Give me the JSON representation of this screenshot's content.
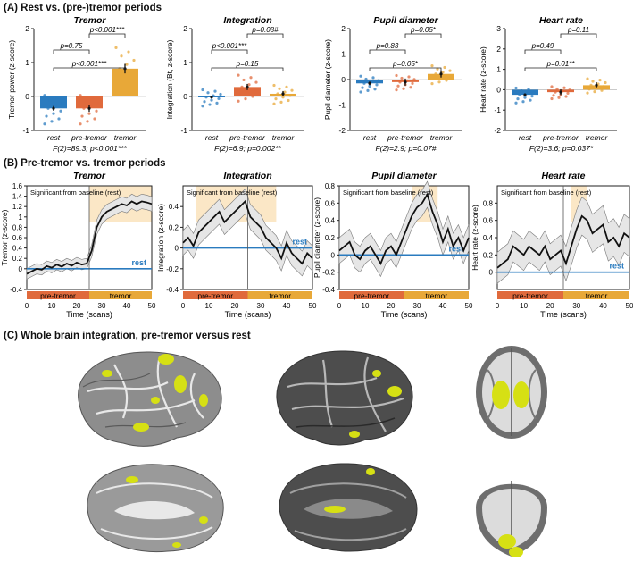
{
  "sections": {
    "a": "(A) Rest vs. (pre-)tremor periods",
    "b": "(B) Pre-tremor vs. tremor periods",
    "c": "(C) Whole brain integration, pre-tremor versus rest"
  },
  "colors": {
    "rest": "#2a7bbf",
    "pretremor": "#e06a3c",
    "tremor": "#e8a838",
    "sig_shade": "#fbe7c6",
    "activation": "#d6e014"
  },
  "chart_data": [
    {
      "type": "bar",
      "title": "Tremor",
      "ylabel": "Tremor power (z-score)",
      "categories": [
        "rest",
        "pre-tremor",
        "tremor"
      ],
      "values": [
        -0.35,
        -0.35,
        0.82
      ],
      "errors": [
        0.07,
        0.1,
        0.14
      ],
      "ylim": [
        -1,
        2
      ],
      "yticks": [
        "-1",
        "0",
        "1",
        "2"
      ],
      "comparisons": [
        {
          "label": "p=0.75",
          "from": 0,
          "to": 1
        },
        {
          "label": "p<0.001***",
          "from": 1,
          "to": 2
        },
        {
          "label": "p<0.001***",
          "from": 0,
          "to": 2
        }
      ],
      "footer": "F(2)=89.3; p<0.001***"
    },
    {
      "type": "bar",
      "title": "Integration",
      "ylabel": "Integration (Bt, z-score)",
      "categories": [
        "rest",
        "pre-tremor",
        "tremor"
      ],
      "values": [
        -0.02,
        0.28,
        0.08
      ],
      "errors": [
        0.04,
        0.09,
        0.08
      ],
      "ylim": [
        -1,
        2
      ],
      "yticks": [
        "-1",
        "0",
        "1",
        "2"
      ],
      "comparisons": [
        {
          "label": "p<0.001***",
          "from": 0,
          "to": 1
        },
        {
          "label": "p=0.08#",
          "from": 1,
          "to": 2
        },
        {
          "label": "p=0.15",
          "from": 0,
          "to": 2
        }
      ],
      "footer": "F(2)=6.9; p=0.002**"
    },
    {
      "type": "bar",
      "title": "Pupil diameter",
      "ylabel": "Pupil diameter (z-score)",
      "categories": [
        "rest",
        "pre-tremor",
        "tremor"
      ],
      "values": [
        -0.15,
        -0.1,
        0.22
      ],
      "errors": [
        0.07,
        0.14,
        0.14
      ],
      "ylim": [
        -2,
        2
      ],
      "yticks": [
        "-2",
        "-1",
        "0",
        "1",
        "2"
      ],
      "comparisons": [
        {
          "label": "p=0.83",
          "from": 0,
          "to": 1
        },
        {
          "label": "p=0.05*",
          "from": 1,
          "to": 2
        },
        {
          "label": "p=0.05*",
          "from": 0,
          "to": 2
        }
      ],
      "footer": "F(2)=2.9; p=0.07#"
    },
    {
      "type": "bar",
      "title": "Heart rate",
      "ylabel": "Heart rate (z-score)",
      "categories": [
        "rest",
        "pre-tremor",
        "tremor"
      ],
      "values": [
        -0.25,
        -0.12,
        0.22
      ],
      "errors": [
        0.06,
        0.14,
        0.15
      ],
      "ylim": [
        -2,
        3
      ],
      "yticks": [
        "-2",
        "-1",
        "0",
        "1",
        "2",
        "3"
      ],
      "comparisons": [
        {
          "label": "p=0.49",
          "from": 0,
          "to": 1
        },
        {
          "label": "p=0.11",
          "from": 1,
          "to": 2
        },
        {
          "label": "p=0.01**",
          "from": 0,
          "to": 2
        }
      ],
      "footer": "F(2)=3.6; p=0.037*"
    },
    {
      "type": "line",
      "title": "Tremor",
      "xlabel": "Time (scans)",
      "ylabel": "Tremor (z-score)",
      "xlim": [
        0,
        50
      ],
      "ylim": [
        -0.4,
        1.6
      ],
      "yticks": [
        "-0.4",
        "0",
        "0.2",
        "0.4",
        "0.6",
        "0.8",
        "1",
        "1.2",
        "1.4",
        "1.6"
      ],
      "xticks": [
        "0",
        "10",
        "20",
        "30",
        "40",
        "50"
      ],
      "onset": 25,
      "sig_label": "Significant from baseline (rest)",
      "sig_ranges": [
        [
          25,
          50
        ]
      ],
      "rest_level": 0,
      "rest_label": "rest",
      "segment_labels": [
        "pre-tremor",
        "tremor"
      ],
      "x": [
        0,
        2,
        4,
        6,
        8,
        10,
        12,
        14,
        16,
        18,
        20,
        22,
        24,
        26,
        28,
        30,
        32,
        34,
        36,
        38,
        40,
        42,
        44,
        46,
        48,
        50
      ],
      "mean": [
        -0.1,
        -0.05,
        0,
        -0.02,
        0.05,
        0.02,
        0.08,
        0.04,
        0.1,
        0.06,
        0.12,
        0.08,
        0.1,
        0.35,
        0.8,
        1.0,
        1.1,
        1.15,
        1.2,
        1.25,
        1.22,
        1.3,
        1.25,
        1.3,
        1.28,
        1.25
      ],
      "sem": [
        0.1,
        0.1,
        0.1,
        0.1,
        0.1,
        0.1,
        0.1,
        0.1,
        0.1,
        0.1,
        0.1,
        0.1,
        0.1,
        0.12,
        0.14,
        0.14,
        0.14,
        0.14,
        0.14,
        0.14,
        0.14,
        0.14,
        0.14,
        0.14,
        0.14,
        0.14
      ]
    },
    {
      "type": "line",
      "title": "Integration",
      "xlabel": "Time (scans)",
      "ylabel": "Integration (z-score)",
      "xlim": [
        0,
        50
      ],
      "ylim": [
        -0.4,
        0.6
      ],
      "yticks": [
        "-0.4",
        "-0.2",
        "0",
        "0.2",
        "0.4"
      ],
      "xticks": [
        "0",
        "10",
        "20",
        "30",
        "40",
        "50"
      ],
      "onset": 25,
      "sig_label": "Significant from baseline (rest)",
      "sig_ranges": [
        [
          5,
          36
        ]
      ],
      "rest_level": 0,
      "rest_label": "rest",
      "segment_labels": [
        "pre-tremor",
        "tremor"
      ],
      "x": [
        0,
        2,
        4,
        6,
        8,
        10,
        12,
        14,
        16,
        18,
        20,
        22,
        24,
        26,
        28,
        30,
        32,
        34,
        36,
        38,
        40,
        42,
        44,
        46,
        48,
        50
      ],
      "mean": [
        0.05,
        0.1,
        0.02,
        0.15,
        0.2,
        0.25,
        0.3,
        0.35,
        0.25,
        0.3,
        0.35,
        0.4,
        0.45,
        0.3,
        0.25,
        0.2,
        0.1,
        0.05,
        0.0,
        -0.1,
        0.05,
        -0.05,
        -0.1,
        -0.15,
        -0.05,
        -0.1
      ],
      "sem": [
        0.12,
        0.12,
        0.12,
        0.12,
        0.12,
        0.12,
        0.12,
        0.12,
        0.12,
        0.12,
        0.12,
        0.12,
        0.12,
        0.12,
        0.12,
        0.12,
        0.12,
        0.12,
        0.12,
        0.12,
        0.12,
        0.12,
        0.12,
        0.12,
        0.12,
        0.12
      ]
    },
    {
      "type": "line",
      "title": "Pupil diameter",
      "xlabel": "Time (scans)",
      "ylabel": "Pupil diameter (z-score)",
      "xlim": [
        0,
        50
      ],
      "ylim": [
        -0.4,
        0.8
      ],
      "yticks": [
        "-0.4",
        "-0.2",
        "0",
        "0.2",
        "0.4",
        "0.6",
        "0.8"
      ],
      "xticks": [
        "0",
        "10",
        "20",
        "30",
        "40",
        "50"
      ],
      "onset": 25,
      "sig_label": "Significant from baseline (rest)",
      "sig_ranges": [
        [
          28,
          38
        ]
      ],
      "rest_level": 0,
      "rest_label": "rest",
      "segment_labels": [
        "pre-tremor",
        "tremor"
      ],
      "x": [
        0,
        2,
        4,
        6,
        8,
        10,
        12,
        14,
        16,
        18,
        20,
        22,
        24,
        26,
        28,
        30,
        32,
        34,
        36,
        38,
        40,
        42,
        44,
        46,
        48,
        50
      ],
      "mean": [
        0.05,
        0.1,
        0.15,
        0.0,
        -0.05,
        0.05,
        0.1,
        0.0,
        -0.1,
        0.05,
        0.1,
        0.0,
        0.15,
        0.3,
        0.45,
        0.55,
        0.6,
        0.7,
        0.5,
        0.35,
        0.15,
        0.3,
        0.1,
        0.2,
        0.05,
        0.2
      ],
      "sem": [
        0.15,
        0.15,
        0.15,
        0.15,
        0.15,
        0.15,
        0.15,
        0.15,
        0.15,
        0.15,
        0.15,
        0.15,
        0.15,
        0.15,
        0.15,
        0.15,
        0.15,
        0.15,
        0.15,
        0.15,
        0.15,
        0.15,
        0.15,
        0.15,
        0.15,
        0.15
      ]
    },
    {
      "type": "line",
      "title": "Heart rate",
      "xlabel": "Time (scans)",
      "ylabel": "Heart rate (z-score)",
      "xlim": [
        0,
        50
      ],
      "ylim": [
        -0.2,
        1.0
      ],
      "yticks": [
        "0",
        "0.2",
        "0.4",
        "0.6",
        "0.8"
      ],
      "xticks": [
        "0",
        "10",
        "20",
        "30",
        "40",
        "50"
      ],
      "onset": 25,
      "sig_label": "Significant from baseline (rest)",
      "sig_ranges": [
        [
          28,
          34
        ]
      ],
      "rest_level": 0,
      "rest_label": "rest",
      "segment_labels": [
        "pre-tremor",
        "tremor"
      ],
      "x": [
        0,
        2,
        4,
        6,
        8,
        10,
        12,
        14,
        16,
        18,
        20,
        22,
        24,
        26,
        28,
        30,
        32,
        34,
        36,
        38,
        40,
        42,
        44,
        46,
        48,
        50
      ],
      "mean": [
        0.05,
        0.1,
        0.15,
        0.3,
        0.25,
        0.2,
        0.3,
        0.25,
        0.2,
        0.3,
        0.15,
        0.2,
        0.25,
        0.1,
        0.3,
        0.5,
        0.65,
        0.6,
        0.45,
        0.5,
        0.55,
        0.35,
        0.4,
        0.3,
        0.45,
        0.4
      ],
      "sem": [
        0.18,
        0.18,
        0.18,
        0.18,
        0.18,
        0.18,
        0.18,
        0.18,
        0.18,
        0.18,
        0.18,
        0.18,
        0.18,
        0.2,
        0.22,
        0.22,
        0.22,
        0.22,
        0.22,
        0.22,
        0.22,
        0.22,
        0.22,
        0.22,
        0.22,
        0.22
      ]
    }
  ]
}
